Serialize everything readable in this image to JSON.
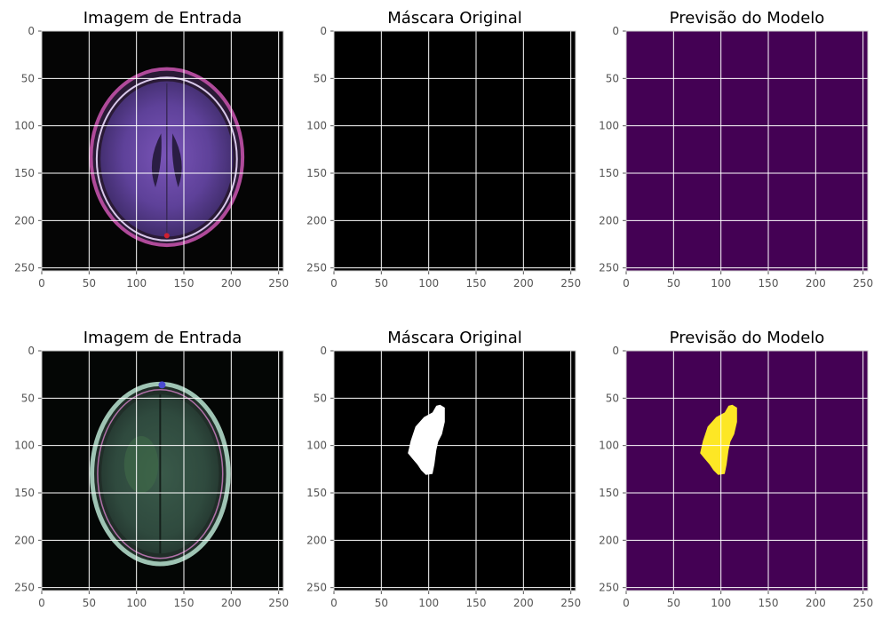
{
  "figure": {
    "axis_ticks": [
      0,
      50,
      100,
      150,
      200,
      250
    ],
    "axis_max": 255,
    "grid_color": "#ffffff",
    "frame_color": "#cccccc",
    "panels": [
      {
        "title": "Imagem de Entrada",
        "content": "mri-slice-1"
      },
      {
        "title": "Máscara Original",
        "content": "empty-mask"
      },
      {
        "title": "Previsão do Modelo",
        "content": "empty-prediction"
      },
      {
        "title": "Imagem de Entrada",
        "content": "mri-slice-2"
      },
      {
        "title": "Máscara Original",
        "content": "tumor-mask"
      },
      {
        "title": "Previsão do Modelo",
        "content": "tumor-prediction"
      }
    ],
    "colors": {
      "mask_background": "#000000",
      "mask_foreground": "#ffffff",
      "prediction_background": "#440154",
      "prediction_foreground": "#fde725"
    }
  }
}
